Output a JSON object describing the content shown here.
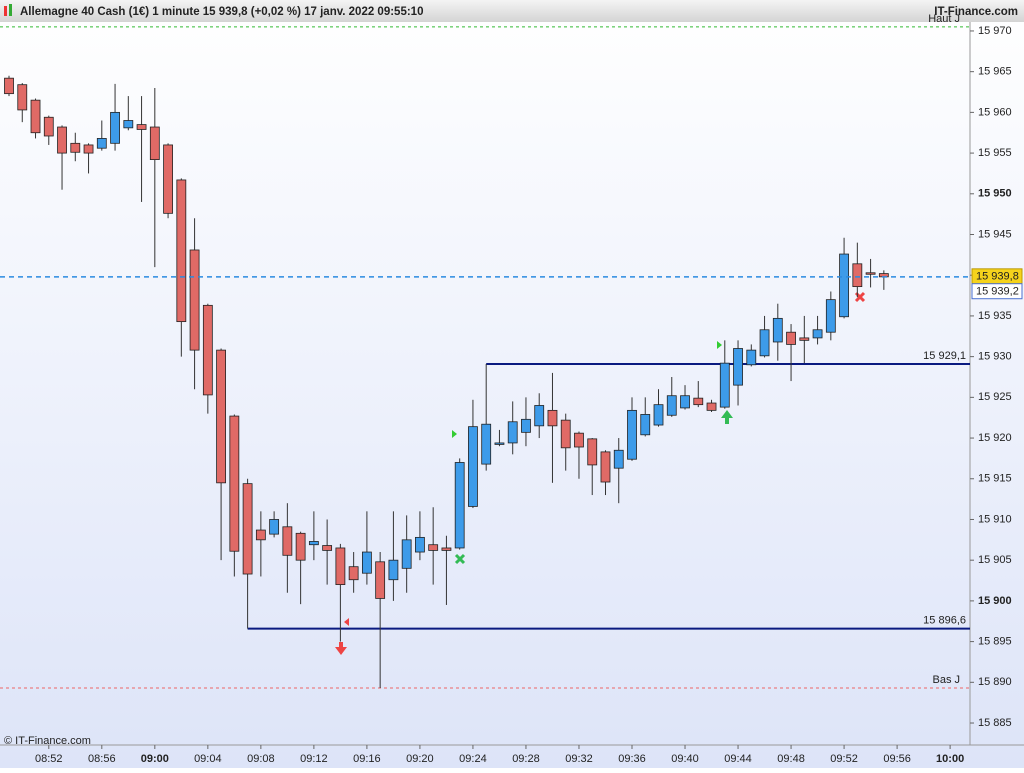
{
  "chart_data": {
    "type": "candlestick",
    "title": "Allemagne 40 Cash (1€) 1 minute 15 939,8 (+0,02 %) 17 janv. 2022 09:55:10",
    "source": "IT-Finance.com",
    "copyright": "© IT-Finance.com",
    "open": [
      15964.2,
      15963.4,
      15961.5,
      15959.4,
      15958.2,
      15956.2,
      15956,
      15955.6,
      15956.2,
      15958.1,
      15958.5,
      15958.2,
      15956,
      15951.7,
      15943.1,
      15936.3,
      15930.8,
      15922.7,
      15914.4,
      15908.7,
      15908.2,
      15909.1,
      15908.3,
      15906.9,
      15906.8,
      15906.5,
      15904.2,
      15903.4,
      15904.8,
      15902.6,
      15904,
      15906,
      15906.9,
      15906.5,
      15906.5,
      15911.6,
      15916.8,
      15919.3,
      15919.4,
      15920.7,
      15921.5,
      15923.4,
      15922.2,
      15920.6,
      15919.9,
      15918.3,
      15916.3,
      15917.4,
      15920.4,
      15921.6,
      15922.8,
      15923.7,
      15924.9,
      15924.3,
      15923.8,
      15926.5,
      15929,
      15930.1,
      15931.8,
      15933,
      15932.3,
      15932.3,
      15933,
      15934.9,
      15941.4,
      15940.3,
      15940.2
    ],
    "high": [
      15964.5,
      15963.6,
      15961.7,
      15959.6,
      15958.4,
      15957.5,
      15956.2,
      15959,
      15963.5,
      15962,
      15962,
      15963,
      15956.2,
      15951.9,
      15947,
      15936.5,
      15931,
      15922.9,
      15915,
      15911,
      15911,
      15912,
      15908.5,
      15911,
      15910,
      15907,
      15906,
      15911,
      15906,
      15911,
      15910.5,
      15911,
      15911.5,
      15908,
      15917.5,
      15924.7,
      15929.1,
      15921,
      15924.5,
      15925,
      15925.5,
      15928,
      15923,
      15920.8,
      15920,
      15918.5,
      15920,
      15925,
      15925,
      15926,
      15927.5,
      15926.5,
      15927,
      15924.7,
      15932,
      15932,
      15931.5,
      15935,
      15936.5,
      15934,
      15935,
      15935,
      15938,
      15944.6,
      15944,
      15942,
      15940.6
    ],
    "low": [
      15962,
      15958.8,
      15956.8,
      15956,
      15950.5,
      15954,
      15952.5,
      15955.3,
      15955.3,
      15957.8,
      15949,
      15941,
      15947,
      15930,
      15926,
      15923,
      15905,
      15903,
      15896.6,
      15903,
      15907.8,
      15901,
      15899.6,
      15905,
      15902,
      15895,
      15901,
      15902,
      15889.3,
      15900,
      15901,
      15905,
      15902,
      15899.5,
      15906.3,
      15911.4,
      15916,
      15919,
      15918,
      15919,
      15920,
      15914.5,
      15916,
      15915,
      15913,
      15913,
      15912,
      15917.2,
      15920.2,
      15921.4,
      15922.6,
      15923.5,
      15923.8,
      15923.2,
      15923.6,
      15924,
      15928.8,
      15929.9,
      15929.5,
      15927,
      15929.2,
      15931.5,
      15932,
      15934.7,
      15937.3,
      15938.5,
      15938.2
    ],
    "close": [
      15962.3,
      15960.3,
      15957.5,
      15957.1,
      15955,
      15955.1,
      15955,
      15956.8,
      15960,
      15959,
      15957.9,
      15954.2,
      15947.6,
      15934.3,
      15930.8,
      15925.3,
      15914.5,
      15906.1,
      15903.3,
      15907.5,
      15910,
      15905.6,
      15905,
      15907.3,
      15906.2,
      15902,
      15902.6,
      15906,
      15900.3,
      15905,
      15907.5,
      15907.8,
      15906.2,
      15906.2,
      15917,
      15921.4,
      15921.7,
      15919.4,
      15922,
      15922.3,
      15924,
      15921.5,
      15918.8,
      15918.9,
      15916.7,
      15914.6,
      15918.5,
      15923.4,
      15922.9,
      15924.1,
      15925.2,
      15925.2,
      15924.1,
      15923.4,
      15929.2,
      15931,
      15930.8,
      15933.3,
      15934.7,
      15931.5,
      15932,
      15933.3,
      15937,
      15942.6,
      15938.6,
      15940.2,
      15939.8
    ],
    "up_color": "#3d9be9",
    "down_color": "#e06a66",
    "xlim": [
      -0.68,
      72.5
    ],
    "xticks": [
      {
        "value": 3,
        "label": "08:52"
      },
      {
        "value": 7,
        "label": "08:56"
      },
      {
        "value": 11,
        "label": "09:00"
      },
      {
        "value": 15,
        "label": "09:04"
      },
      {
        "value": 19,
        "label": "09:08"
      },
      {
        "value": 23,
        "label": "09:12"
      },
      {
        "value": 27,
        "label": "09:16"
      },
      {
        "value": 31,
        "label": "09:20"
      },
      {
        "value": 35,
        "label": "09:24"
      },
      {
        "value": 39,
        "label": "09:28"
      },
      {
        "value": 43,
        "label": "09:32"
      },
      {
        "value": 47,
        "label": "09:36"
      },
      {
        "value": 51,
        "label": "09:40"
      },
      {
        "value": 55,
        "label": "09:44"
      },
      {
        "value": 59,
        "label": "09:48"
      },
      {
        "value": 63,
        "label": "09:52"
      },
      {
        "value": 67,
        "label": "09:56"
      },
      {
        "value": 71,
        "label": "10:00"
      }
    ],
    "ylim": [
      15882.3,
      15971.1
    ],
    "yticks": [
      {
        "value": 15885,
        "label": "15 885"
      },
      {
        "value": 15890,
        "label": "15 890"
      },
      {
        "value": 15895,
        "label": "15 895"
      },
      {
        "value": 15900,
        "label": "15 900"
      },
      {
        "value": 15905,
        "label": "15 905"
      },
      {
        "value": 15910,
        "label": "15 910"
      },
      {
        "value": 15915,
        "label": "15 915"
      },
      {
        "value": 15920,
        "label": "15 920"
      },
      {
        "value": 15925,
        "label": "15 925"
      },
      {
        "value": 15930,
        "label": "15 930"
      },
      {
        "value": 15935,
        "label": "15 935"
      },
      {
        "value": 15940,
        "label": "15 940"
      },
      {
        "value": 15945,
        "label": "15 945"
      },
      {
        "value": 15950,
        "label": "15 950"
      },
      {
        "value": 15955,
        "label": "15 955"
      },
      {
        "value": 15960,
        "label": "15 960"
      },
      {
        "value": 15965,
        "label": "15 965"
      },
      {
        "value": 15970,
        "label": "15 970"
      }
    ],
    "levels": [
      {
        "value": 15929.1,
        "label": "15 929,1"
      },
      {
        "value": 15896.6,
        "label": "15 896,6"
      }
    ],
    "day_high": {
      "value": 15970.5,
      "label": "Haut J"
    },
    "day_low": {
      "value": 15889.3,
      "label": "Bas J"
    },
    "last_price": {
      "value": 15939.8,
      "label": "15 939,8"
    },
    "other_price": {
      "value": 15939.2,
      "label": "15 939,2"
    }
  }
}
